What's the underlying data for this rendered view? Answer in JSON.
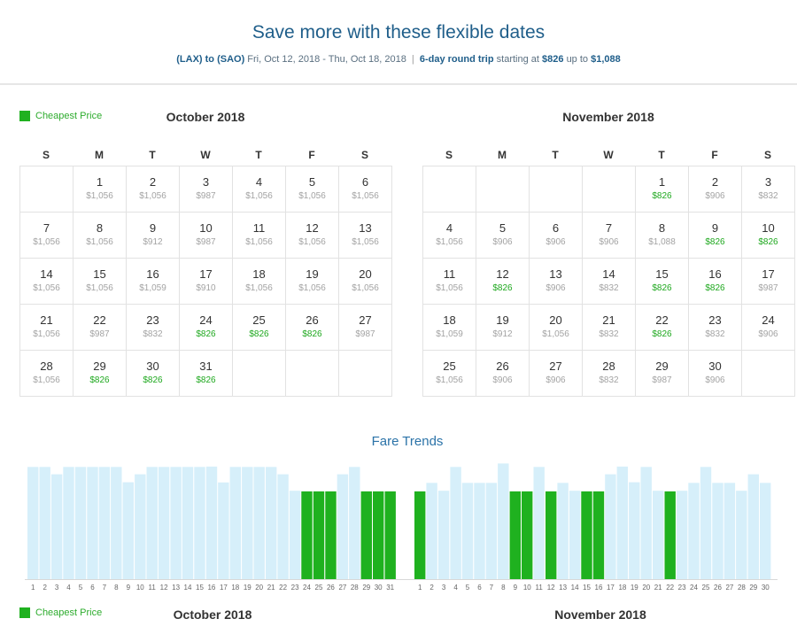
{
  "header": {
    "title": "Save more with these flexible dates",
    "route": "(LAX) to (SAO)",
    "dates": "Fri, Oct 12, 2018 - Thu, Oct 18, 2018",
    "separator": "|",
    "trip_type": "6-day round trip",
    "starting_text": "starting at",
    "min_price": "$826",
    "up_to_text": "up to",
    "max_price": "$1,088"
  },
  "legend": {
    "label": "Cheapest Price"
  },
  "colors": {
    "cheap": "#1fb11f",
    "regular_bar": "#d6effa",
    "title": "#1f5e8a"
  },
  "weekdays": [
    "S",
    "M",
    "T",
    "W",
    "T",
    "F",
    "S"
  ],
  "calendars": [
    {
      "title": "October 2018",
      "start_offset": 1,
      "days": [
        {
          "d": "1",
          "p": "$1,056",
          "c": false
        },
        {
          "d": "2",
          "p": "$1,056",
          "c": false
        },
        {
          "d": "3",
          "p": "$987",
          "c": false
        },
        {
          "d": "4",
          "p": "$1,056",
          "c": false
        },
        {
          "d": "5",
          "p": "$1,056",
          "c": false
        },
        {
          "d": "6",
          "p": "$1,056",
          "c": false
        },
        {
          "d": "7",
          "p": "$1,056",
          "c": false
        },
        {
          "d": "8",
          "p": "$1,056",
          "c": false
        },
        {
          "d": "9",
          "p": "$912",
          "c": false
        },
        {
          "d": "10",
          "p": "$987",
          "c": false
        },
        {
          "d": "11",
          "p": "$1,056",
          "c": false
        },
        {
          "d": "12",
          "p": "$1,056",
          "c": false
        },
        {
          "d": "13",
          "p": "$1,056",
          "c": false
        },
        {
          "d": "14",
          "p": "$1,056",
          "c": false
        },
        {
          "d": "15",
          "p": "$1,056",
          "c": false
        },
        {
          "d": "16",
          "p": "$1,059",
          "c": false
        },
        {
          "d": "17",
          "p": "$910",
          "c": false
        },
        {
          "d": "18",
          "p": "$1,056",
          "c": false
        },
        {
          "d": "19",
          "p": "$1,056",
          "c": false
        },
        {
          "d": "20",
          "p": "$1,056",
          "c": false
        },
        {
          "d": "21",
          "p": "$1,056",
          "c": false
        },
        {
          "d": "22",
          "p": "$987",
          "c": false
        },
        {
          "d": "23",
          "p": "$832",
          "c": false
        },
        {
          "d": "24",
          "p": "$826",
          "c": true
        },
        {
          "d": "25",
          "p": "$826",
          "c": true
        },
        {
          "d": "26",
          "p": "$826",
          "c": true
        },
        {
          "d": "27",
          "p": "$987",
          "c": false
        },
        {
          "d": "28",
          "p": "$1,056",
          "c": false
        },
        {
          "d": "29",
          "p": "$826",
          "c": true
        },
        {
          "d": "30",
          "p": "$826",
          "c": true
        },
        {
          "d": "31",
          "p": "$826",
          "c": true
        }
      ]
    },
    {
      "title": "November 2018",
      "start_offset": 4,
      "days": [
        {
          "d": "1",
          "p": "$826",
          "c": true
        },
        {
          "d": "2",
          "p": "$906",
          "c": false
        },
        {
          "d": "3",
          "p": "$832",
          "c": false
        },
        {
          "d": "4",
          "p": "$1,056",
          "c": false
        },
        {
          "d": "5",
          "p": "$906",
          "c": false
        },
        {
          "d": "6",
          "p": "$906",
          "c": false
        },
        {
          "d": "7",
          "p": "$906",
          "c": false
        },
        {
          "d": "8",
          "p": "$1,088",
          "c": false
        },
        {
          "d": "9",
          "p": "$826",
          "c": true
        },
        {
          "d": "10",
          "p": "$826",
          "c": true
        },
        {
          "d": "11",
          "p": "$1,056",
          "c": false
        },
        {
          "d": "12",
          "p": "$826",
          "c": true
        },
        {
          "d": "13",
          "p": "$906",
          "c": false
        },
        {
          "d": "14",
          "p": "$832",
          "c": false
        },
        {
          "d": "15",
          "p": "$826",
          "c": true
        },
        {
          "d": "16",
          "p": "$826",
          "c": true
        },
        {
          "d": "17",
          "p": "$987",
          "c": false
        },
        {
          "d": "18",
          "p": "$1,059",
          "c": false
        },
        {
          "d": "19",
          "p": "$912",
          "c": false
        },
        {
          "d": "20",
          "p": "$1,056",
          "c": false
        },
        {
          "d": "21",
          "p": "$832",
          "c": false
        },
        {
          "d": "22",
          "p": "$826",
          "c": true
        },
        {
          "d": "23",
          "p": "$832",
          "c": false
        },
        {
          "d": "24",
          "p": "$906",
          "c": false
        },
        {
          "d": "25",
          "p": "$1,056",
          "c": false
        },
        {
          "d": "26",
          "p": "$906",
          "c": false
        },
        {
          "d": "27",
          "p": "$906",
          "c": false
        },
        {
          "d": "28",
          "p": "$832",
          "c": false
        },
        {
          "d": "29",
          "p": "$987",
          "c": false
        },
        {
          "d": "30",
          "p": "$906",
          "c": false
        }
      ]
    }
  ],
  "fare_trends": {
    "title": "Fare Trends",
    "footer_months": [
      "October 2018",
      "November 2018"
    ]
  },
  "chart_data": {
    "type": "bar",
    "title": "Fare Trends",
    "ylim": [
      0,
      1100
    ],
    "series": [
      {
        "categories": [
          "1",
          "2",
          "3",
          "4",
          "5",
          "6",
          "7",
          "8",
          "9",
          "10",
          "11",
          "12",
          "13",
          "14",
          "15",
          "16",
          "17",
          "18",
          "19",
          "20",
          "21",
          "22",
          "23",
          "24",
          "25",
          "26",
          "27",
          "28",
          "29",
          "30",
          "31"
        ],
        "values": [
          1056,
          1056,
          987,
          1056,
          1056,
          1056,
          1056,
          1056,
          912,
          987,
          1056,
          1056,
          1056,
          1056,
          1056,
          1059,
          910,
          1056,
          1056,
          1056,
          1056,
          987,
          832,
          826,
          826,
          826,
          987,
          1056,
          826,
          826,
          826
        ],
        "cheapest": [
          false,
          false,
          false,
          false,
          false,
          false,
          false,
          false,
          false,
          false,
          false,
          false,
          false,
          false,
          false,
          false,
          false,
          false,
          false,
          false,
          false,
          false,
          false,
          true,
          true,
          true,
          false,
          false,
          true,
          true,
          true
        ]
      },
      {
        "categories": [
          "1",
          "2",
          "3",
          "4",
          "5",
          "6",
          "7",
          "8",
          "9",
          "10",
          "11",
          "12",
          "13",
          "14",
          "15",
          "16",
          "17",
          "18",
          "19",
          "20",
          "21",
          "22",
          "23",
          "24",
          "25",
          "26",
          "27",
          "28",
          "29",
          "30"
        ],
        "values": [
          826,
          906,
          832,
          1056,
          906,
          906,
          906,
          1088,
          826,
          826,
          1056,
          826,
          906,
          832,
          826,
          826,
          987,
          1059,
          912,
          1056,
          832,
          826,
          832,
          906,
          1056,
          906,
          906,
          832,
          987,
          906
        ],
        "cheapest": [
          true,
          false,
          false,
          false,
          false,
          false,
          false,
          false,
          true,
          true,
          false,
          true,
          false,
          false,
          true,
          true,
          false,
          false,
          false,
          false,
          false,
          true,
          false,
          false,
          false,
          false,
          false,
          false,
          false,
          false
        ]
      }
    ]
  }
}
